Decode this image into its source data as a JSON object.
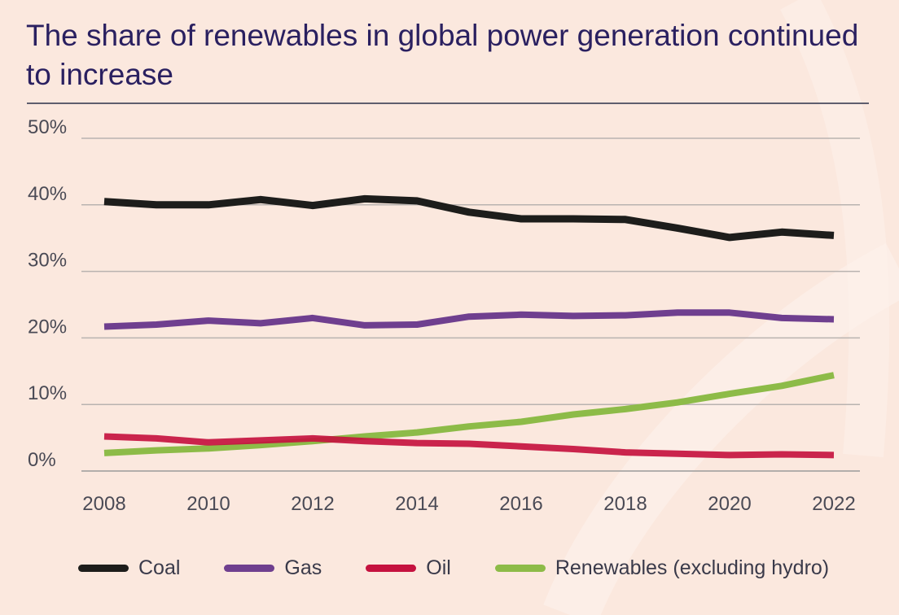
{
  "title": "The share of renewables in global power generation continued to increase",
  "chart_data": {
    "type": "line",
    "title": "The share of renewables in global power generation continued to increase",
    "x": [
      2008,
      2009,
      2010,
      2011,
      2012,
      2013,
      2014,
      2015,
      2016,
      2017,
      2018,
      2019,
      2020,
      2021,
      2022
    ],
    "xticks": [
      2008,
      2010,
      2012,
      2014,
      2016,
      2018,
      2020,
      2022
    ],
    "xtick_labels": [
      "2008",
      "2010",
      "2012",
      "2014",
      "2016",
      "2018",
      "2020",
      "2022"
    ],
    "yticks": [
      0,
      10,
      20,
      30,
      40,
      50
    ],
    "ytick_labels": [
      "0%",
      "10%",
      "20%",
      "30%",
      "40%",
      "50%"
    ],
    "ylim": [
      0,
      50
    ],
    "grid": "horizontal",
    "legend_position": "bottom",
    "series": [
      {
        "name": "Coal",
        "color": "#1d1d1b",
        "values": [
          40.5,
          40.0,
          40.0,
          40.8,
          39.9,
          40.9,
          40.6,
          38.9,
          37.9,
          37.9,
          37.8,
          36.5,
          35.1,
          35.9,
          35.4
        ]
      },
      {
        "name": "Gas",
        "color": "#6f3f8f",
        "values": [
          21.7,
          22.0,
          22.6,
          22.2,
          23.0,
          21.9,
          22.0,
          23.2,
          23.5,
          23.3,
          23.4,
          23.8,
          23.8,
          23.0,
          22.8
        ]
      },
      {
        "name": "Oil",
        "color": "#c5123f",
        "values": [
          5.2,
          4.9,
          4.3,
          4.6,
          4.9,
          4.5,
          4.2,
          4.1,
          3.7,
          3.3,
          2.8,
          2.6,
          2.4,
          2.5,
          2.4
        ]
      },
      {
        "name": "Renewables (excluding hydro)",
        "color": "#8dbb48",
        "values": [
          2.7,
          3.1,
          3.4,
          3.9,
          4.5,
          5.2,
          5.8,
          6.7,
          7.4,
          8.5,
          9.3,
          10.3,
          11.6,
          12.8,
          14.4
        ]
      }
    ]
  }
}
